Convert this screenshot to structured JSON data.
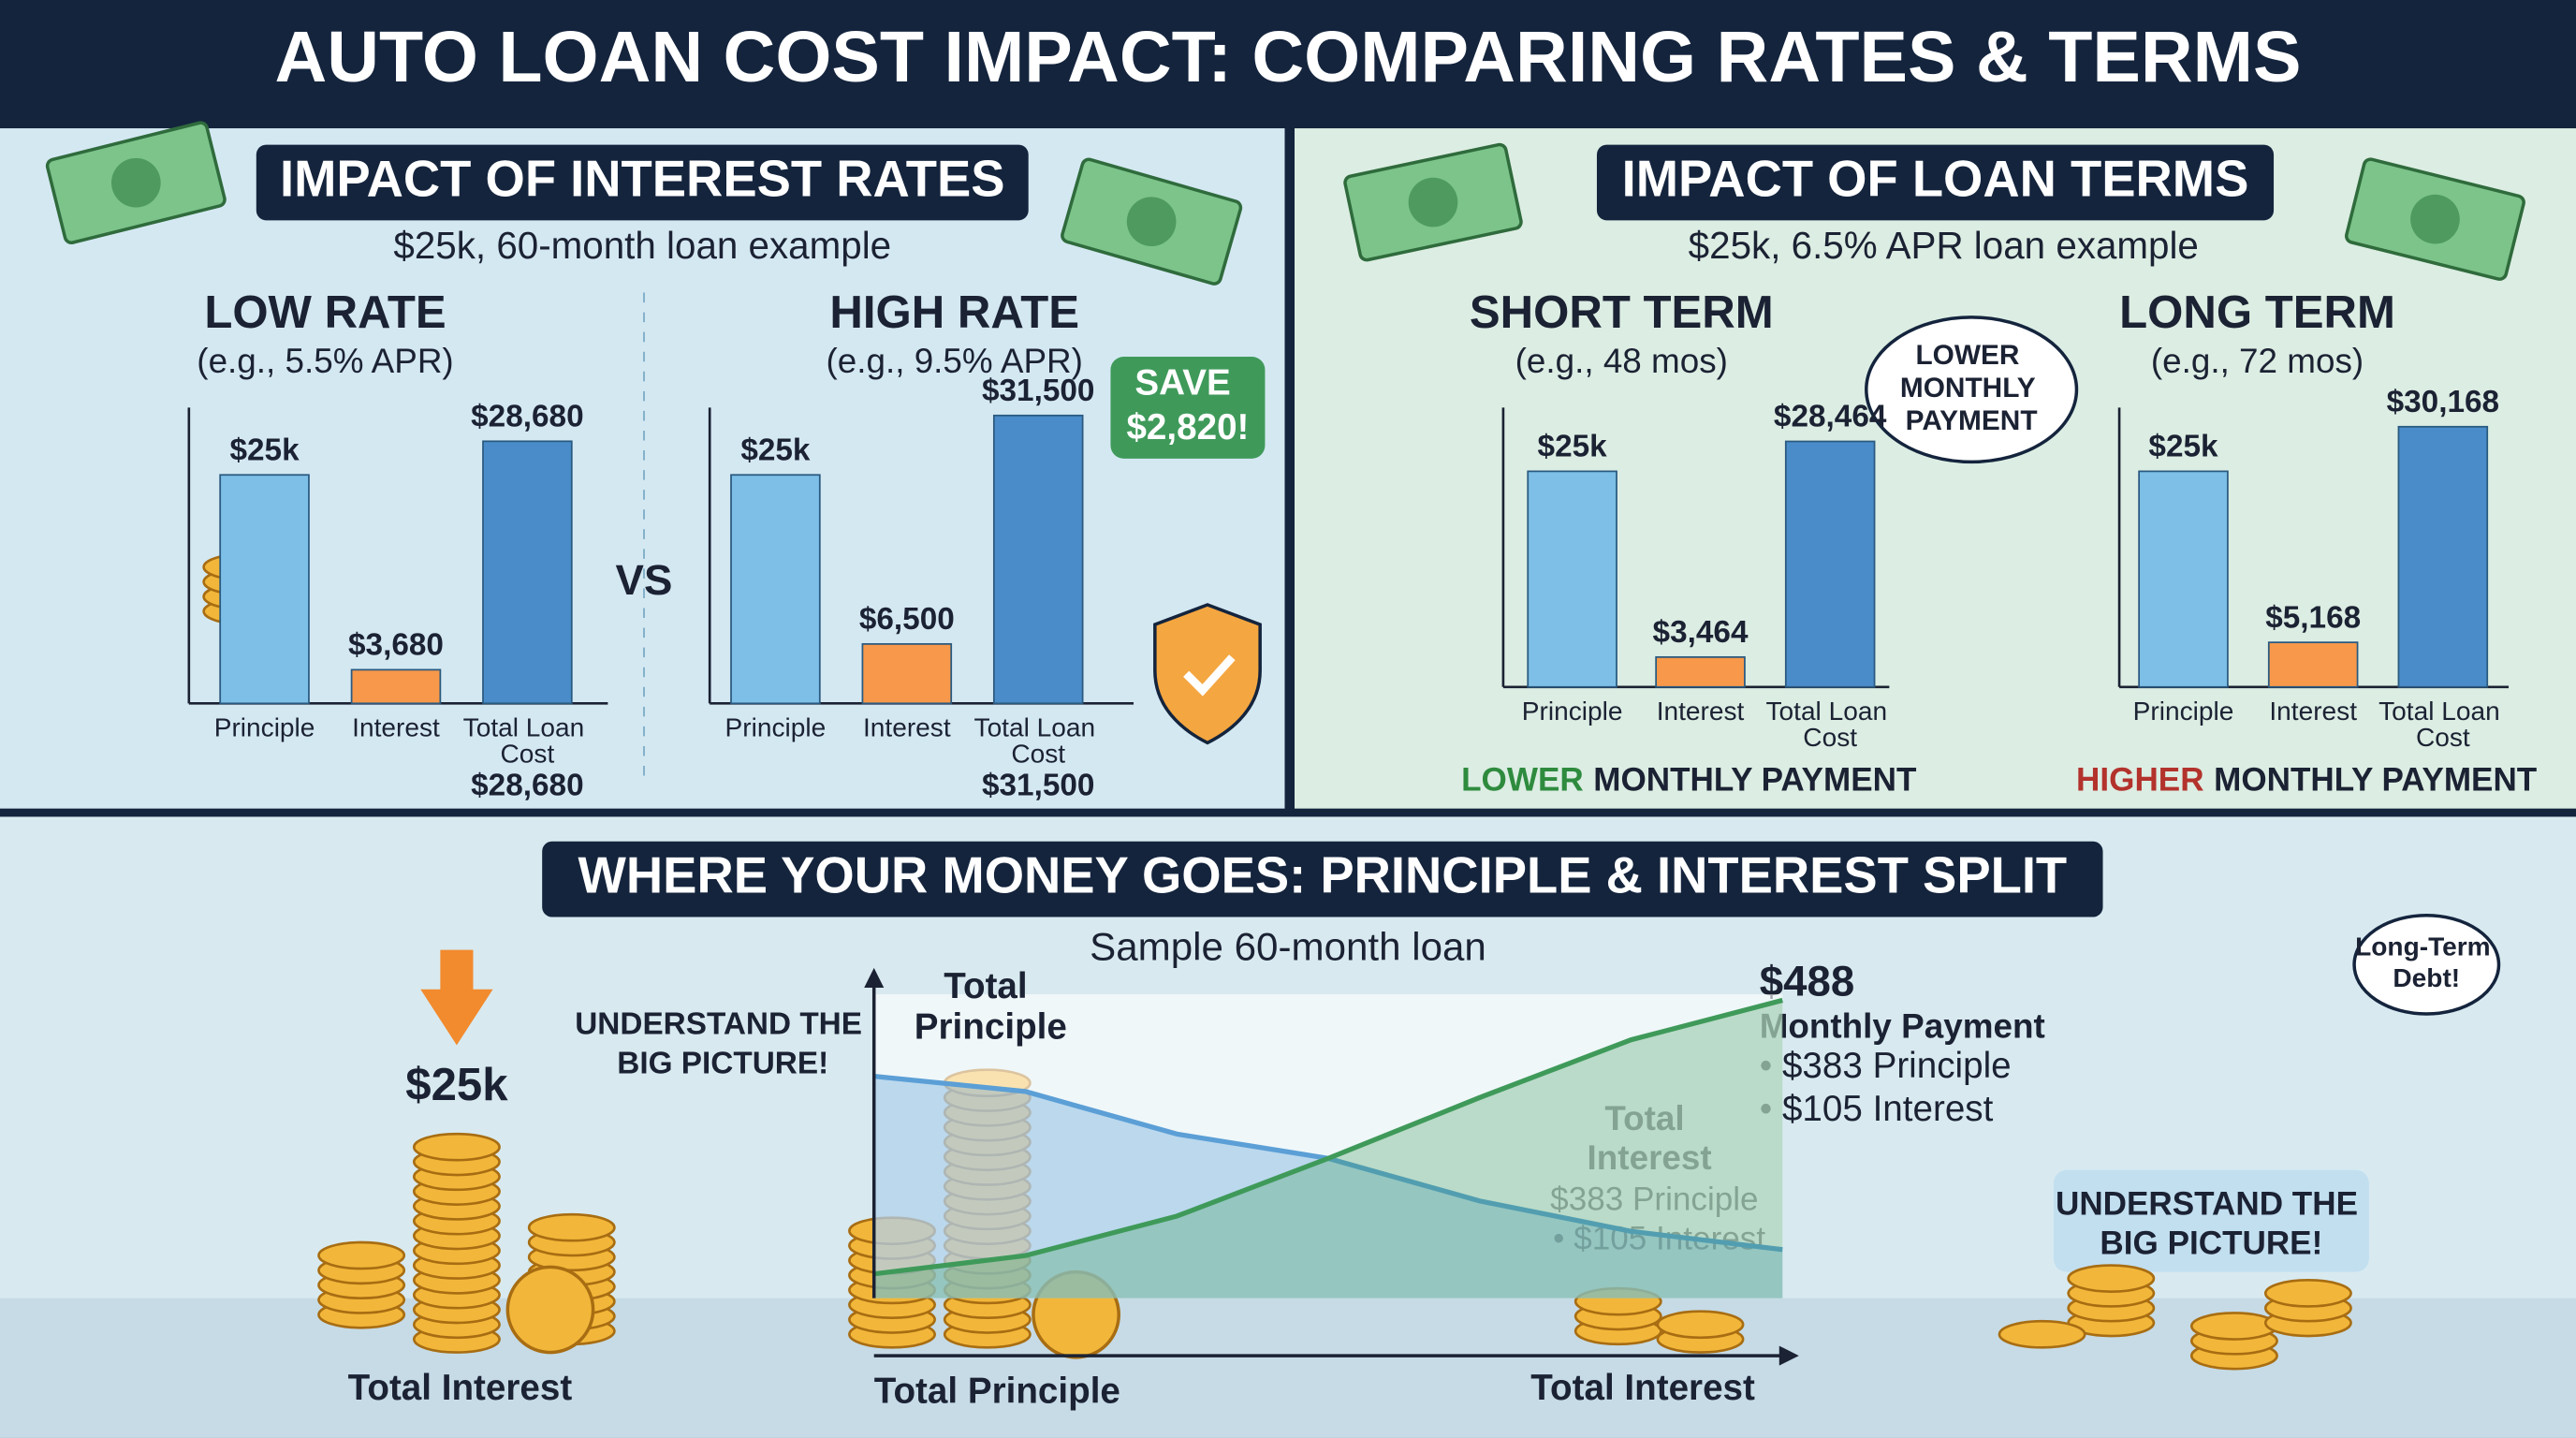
{
  "header": {
    "title": "AUTO LOAN COST IMPACT: COMPARING RATES & TERMS"
  },
  "rates_panel": {
    "heading": "IMPACT OF INTEREST RATES",
    "subheading": "$25k, 60-month loan example",
    "vs": "VS",
    "badge": "SAVE $2,820!"
  },
  "terms_panel": {
    "heading": "IMPACT OF LOAN TERMS",
    "subheading": "$25k, 6.5% APR loan example",
    "bubble": "LOWER MONTHLY PAYMENT"
  },
  "split_panel": {
    "heading": "WHERE YOUR MONEY GOES: PRINCIPLE & INTEREST SPLIT",
    "amount": "$25k",
    "left_label": "Total Interest",
    "callout_left": "UNDERSTAND THE BIG PICTURE!",
    "bottom_left": "Total Principle",
    "bottom_right": "Total Interest",
    "mid_label": "Total Interest",
    "mid_lines": [
      "$383 Principle",
      "• $105 Interest"
    ],
    "payment_amount": "$488",
    "payment_label": "Monthly Payment",
    "payment_lines": [
      "• $383 Principle",
      "• $105 Interest"
    ],
    "callout_right": "UNDERSTAND THE BIG PICTURE!",
    "bubble": "Long-Term Debt!"
  },
  "chart_data": [
    {
      "type": "bar",
      "title": "LOW RATE",
      "subtitle": "(e.g., 5.5% APR)",
      "categories": [
        "Principle",
        "Interest",
        "Total Loan Cost"
      ],
      "values": [
        25000,
        3680,
        28680
      ],
      "value_labels": [
        "$25k",
        "$3,680",
        "$28,680"
      ],
      "colors": [
        "#7dbfe6",
        "#f7984a",
        "#4a8cc9"
      ],
      "ylim": [
        0,
        32000
      ],
      "note": "$28,680"
    },
    {
      "type": "bar",
      "title": "HIGH RATE",
      "subtitle": "(e.g., 9.5% APR)",
      "categories": [
        "Principle",
        "Interest",
        "Total Loan Cost"
      ],
      "values": [
        25000,
        6500,
        31500
      ],
      "value_labels": [
        "$25k",
        "$6,500",
        "$31,500"
      ],
      "colors": [
        "#7dbfe6",
        "#f7984a",
        "#4a8cc9"
      ],
      "ylim": [
        0,
        32000
      ],
      "note": "$31,500"
    },
    {
      "type": "bar",
      "title": "SHORT TERM",
      "subtitle": "(e.g., 48 mos)",
      "categories": [
        "Principle",
        "Interest",
        "Total Loan Cost"
      ],
      "values": [
        25000,
        3464,
        28464
      ],
      "value_labels": [
        "$25k",
        "$3,464",
        "$28,464"
      ],
      "colors": [
        "#7dbfe6",
        "#f7984a",
        "#4a8cc9"
      ],
      "ylim": [
        0,
        32000
      ],
      "note_highlight": "LOWER",
      "highlight_color": "#2e8b3e",
      "note": "MONTHLY PAYMENT"
    },
    {
      "type": "bar",
      "title": "LONG TERM",
      "subtitle": "(e.g., 72 mos)",
      "categories": [
        "Principle",
        "Interest",
        "Total Loan Cost"
      ],
      "values": [
        25000,
        5168,
        30168
      ],
      "value_labels": [
        "$25k",
        "$5,168",
        "$30,168"
      ],
      "colors": [
        "#7dbfe6",
        "#f7984a",
        "#4a8cc9"
      ],
      "ylim": [
        0,
        32000
      ],
      "note_highlight": "HIGHER",
      "highlight_color": "#b3322c",
      "note": "MONTHLY PAYMENT"
    },
    {
      "type": "area",
      "title": "Sample 60-month loan",
      "x": [
        0,
        10,
        20,
        30,
        40,
        50,
        60
      ],
      "xlim": [
        0,
        60
      ],
      "ylim": [
        0,
        100
      ],
      "series": [
        {
          "name": "Total Principle",
          "color": "#5b9fd6",
          "values": [
            73,
            68,
            54,
            46,
            32,
            22,
            16
          ]
        },
        {
          "name": "Total Interest",
          "color": "#3f9a5a",
          "values": [
            8,
            14,
            27,
            46,
            66,
            85,
            98
          ]
        }
      ]
    }
  ]
}
